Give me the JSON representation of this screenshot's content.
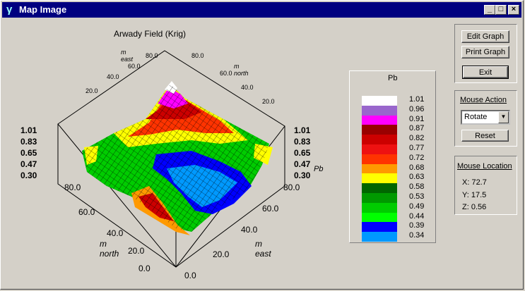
{
  "window": {
    "title": "Map Image",
    "icon": "gamma-icon",
    "buttons": [
      "_",
      "□",
      "×"
    ]
  },
  "graph": {
    "title": "Arwady Field (Krig)",
    "axis_labels": [
      "m north",
      "m east",
      "Pb"
    ],
    "north_ticks": [
      "0.0",
      "20.0",
      "40.0",
      "60.0",
      "80.0"
    ],
    "east_ticks": [
      "0.0",
      "20.0",
      "40.0",
      "60.0",
      "80.0"
    ],
    "z_ticks": [
      "1.01",
      "0.83",
      "0.65",
      "0.47",
      "0.30"
    ],
    "top_left_ticks": [
      "20.0",
      "40.0",
      "60.0",
      "80.0",
      "m east"
    ],
    "top_right_ticks": [
      "20.0",
      "40.0",
      "60.0",
      "80.0",
      "m north"
    ]
  },
  "legend": {
    "title": "Pb",
    "items": [
      {
        "label": "1.01",
        "color": "#ffffff"
      },
      {
        "label": "0.96",
        "color": "#9966cc"
      },
      {
        "label": "0.91",
        "color": "#ff00ff"
      },
      {
        "label": "0.87",
        "color": "#990000"
      },
      {
        "label": "0.82",
        "color": "#cc0000"
      },
      {
        "label": "0.77",
        "color": "#ee1111"
      },
      {
        "label": "0.72",
        "color": "#ff3300"
      },
      {
        "label": "0.68",
        "color": "#ff9900"
      },
      {
        "label": "0.63",
        "color": "#ffff00"
      },
      {
        "label": "0.58",
        "color": "#006600"
      },
      {
        "label": "0.53",
        "color": "#009900"
      },
      {
        "label": "0.49",
        "color": "#00cc00"
      },
      {
        "label": "0.44",
        "color": "#00ff00"
      },
      {
        "label": "0.39",
        "color": "#0000ff"
      },
      {
        "label": "0.34",
        "color": "#0099ff"
      }
    ]
  },
  "controls": {
    "edit_graph": "Edit Graph",
    "print_graph": "Print Graph",
    "exit": "Exit",
    "mouse_action_title": "Mouse Action",
    "mouse_action_value": "Rotate",
    "reset": "Reset",
    "mouse_location_title": "Mouse Location",
    "x": "X: 72.7",
    "y": "Y: 17.5",
    "z": "Z: 0.56"
  }
}
